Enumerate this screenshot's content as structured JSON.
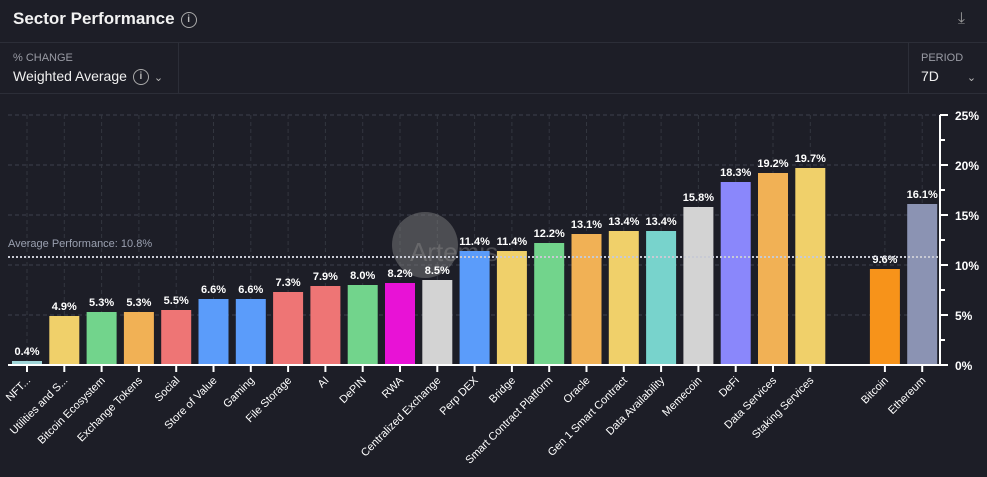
{
  "header": {
    "title": "Sector Performance",
    "info_icon": "info-icon",
    "download_icon": "download-icon"
  },
  "controls": {
    "change": {
      "label": "% CHANGE",
      "value": "Weighted Average"
    },
    "period": {
      "label": "PERIOD",
      "value": "7D"
    }
  },
  "watermark": "Artemis",
  "chart_data": {
    "type": "bar",
    "categories": [
      "NFT...",
      "Utilities and S...",
      "Bitcoin Ecosystem",
      "Exchange Tokens",
      "Social",
      "Store of Value",
      "Gaming",
      "File Storage",
      "AI",
      "DePIN",
      "RWA",
      "Centralized Exchange",
      "Perp DEX",
      "Bridge",
      "Smart Contract Platform",
      "Oracle",
      "Gen 1 Smart Contract",
      "Data Availability",
      "Memecoin",
      "DeFi",
      "Data Services",
      "Staking Services",
      "Bitcoin",
      "Ethereum"
    ],
    "values": [
      0.4,
      4.9,
      5.3,
      5.3,
      5.5,
      6.6,
      6.6,
      7.3,
      7.9,
      8.0,
      8.2,
      8.5,
      11.4,
      11.4,
      12.2,
      13.1,
      13.4,
      13.4,
      15.8,
      18.3,
      19.2,
      19.7,
      9.6,
      16.1
    ],
    "data_labels": [
      "0.4%",
      "4.9%",
      "5.3%",
      "5.3%",
      "5.5%",
      "6.6%",
      "6.6%",
      "7.3%",
      "7.9%",
      "8.0%",
      "8.2%",
      "8.5%",
      "11.4%",
      "11.4%",
      "12.2%",
      "13.1%",
      "13.4%",
      "13.4%",
      "15.8%",
      "18.3%",
      "19.2%",
      "19.7%",
      "9.6%",
      "16.1%"
    ],
    "colors": [
      "#9fd5d8",
      "#f0d06a",
      "#72d48c",
      "#f1b155",
      "#ee7575",
      "#5b9cfa",
      "#5b9cfa",
      "#ee7575",
      "#ee7575",
      "#72d48c",
      "#e812d6",
      "#d3d3d3",
      "#5b9cfa",
      "#f0d06a",
      "#72d48c",
      "#f1b155",
      "#f0d06a",
      "#78d3cc",
      "#d3d3d3",
      "#8a87fb",
      "#f1b155",
      "#f0d06a",
      "#f7931a",
      "#8b93b3"
    ],
    "ylim": [
      0,
      25
    ],
    "yticks": [
      "0%",
      "5%",
      "10%",
      "15%",
      "20%",
      "25%"
    ],
    "y_axis_position": "right",
    "grid": true,
    "average": {
      "value": 10.8,
      "label": "Average Performance: 10.8%"
    }
  }
}
